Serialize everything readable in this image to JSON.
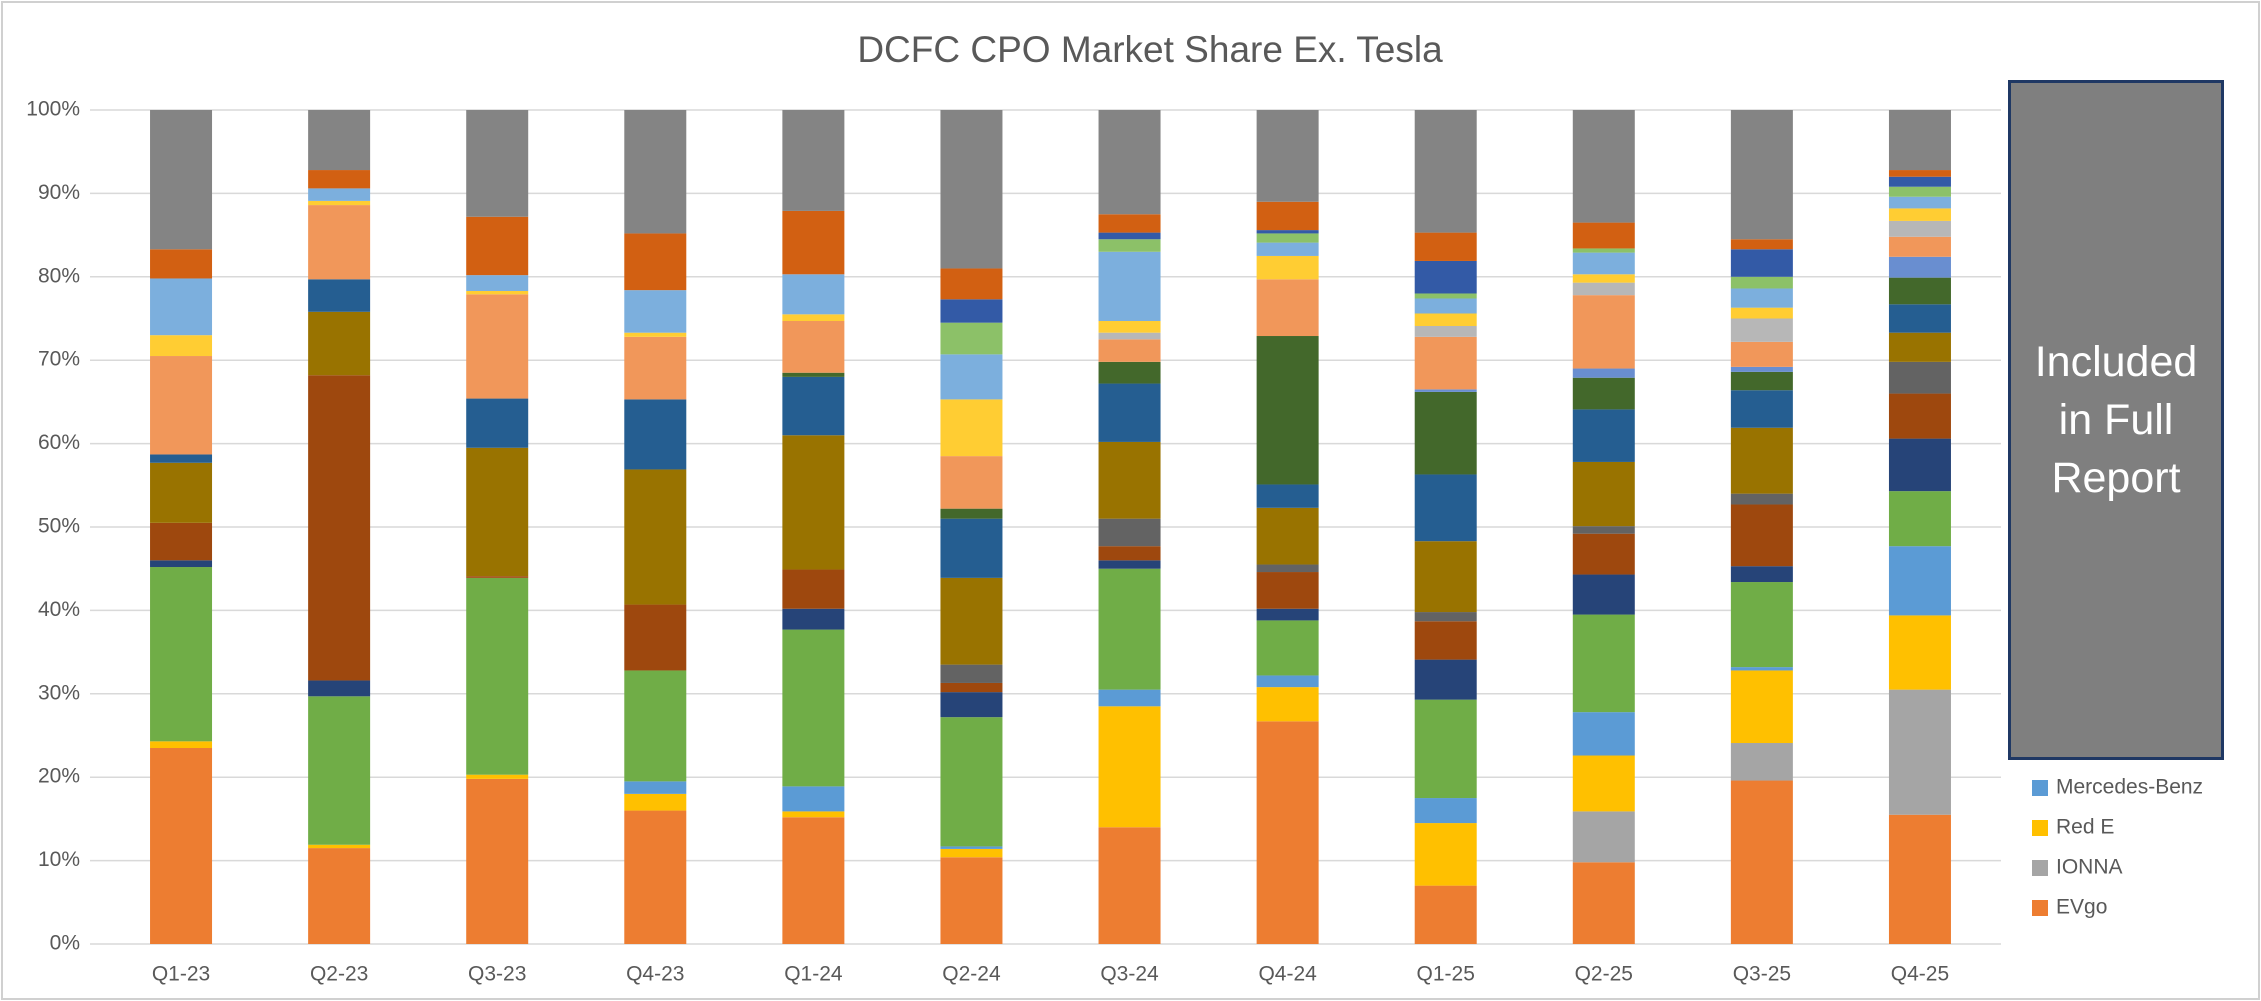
{
  "chart_data": {
    "type": "stacked_bar",
    "title": "DCFC CPO Market Share Ex. Tesla",
    "categories": [
      "Q1-23",
      "Q2-23",
      "Q3-23",
      "Q4-23",
      "Q1-24",
      "Q2-24",
      "Q3-24",
      "Q4-24",
      "Q1-25",
      "Q2-25",
      "Q3-25",
      "Q4-25"
    ],
    "ylim": [
      0,
      100
    ],
    "yticks": [
      {
        "value": 0,
        "label": "0%"
      },
      {
        "value": 10,
        "label": "10%"
      },
      {
        "value": 20,
        "label": "20%"
      },
      {
        "value": 30,
        "label": "30%"
      },
      {
        "value": 40,
        "label": "40%"
      },
      {
        "value": 50,
        "label": "50%"
      },
      {
        "value": 60,
        "label": "60%"
      },
      {
        "value": 70,
        "label": "70%"
      },
      {
        "value": 80,
        "label": "80%"
      },
      {
        "value": 90,
        "label": "90%"
      },
      {
        "value": 100,
        "label": "100%"
      }
    ],
    "grid": true,
    "overlay_text": "Included in Full Report",
    "series": [
      {
        "name": "EVgo",
        "color": "#ED7D31",
        "values": [
          23.5,
          11.5,
          19.8,
          16,
          15.2,
          10.4,
          14,
          26.7,
          7,
          9.8,
          19.6,
          15.5
        ]
      },
      {
        "name": "IONNA",
        "color": "#A5A5A5",
        "values": [
          0,
          0,
          0,
          0,
          0,
          0,
          0,
          0,
          0,
          6.1,
          4.5,
          15
        ]
      },
      {
        "name": "Red E",
        "color": "#FFC000",
        "values": [
          0.8,
          0.4,
          0.5,
          2,
          0.7,
          1,
          14.5,
          4.1,
          7.5,
          6.7,
          8.7,
          8.9
        ]
      },
      {
        "name": "Mercedes-Benz",
        "color": "#5B9BD5",
        "values": [
          0,
          0,
          0,
          1.5,
          3,
          0.3,
          2,
          1.4,
          3,
          5.2,
          0.4,
          8.3
        ]
      },
      {
        "color": "#70AD47",
        "values": [
          20.9,
          17.8,
          23.6,
          13.3,
          18.8,
          15.5,
          14.5,
          6.6,
          11.8,
          11.7,
          10.2,
          6.6
        ]
      },
      {
        "color": "#264478",
        "values": [
          0.8,
          1.9,
          0,
          0,
          2.5,
          3,
          1,
          1.4,
          4.8,
          4.8,
          1.9,
          6.3
        ]
      },
      {
        "color": "#9E480E",
        "values": [
          4.5,
          36.6,
          0.2,
          7.9,
          4.7,
          1.1,
          1.7,
          4.4,
          4.6,
          4.9,
          7.4,
          5.4
        ]
      },
      {
        "color": "#636363",
        "values": [
          0,
          0,
          0,
          0,
          0,
          2.2,
          3.3,
          0.9,
          1.1,
          0.9,
          1.3,
          3.8
        ]
      },
      {
        "color": "#997300",
        "values": [
          7.2,
          7.6,
          15.4,
          16.2,
          16.1,
          10.4,
          9.2,
          6.8,
          8.5,
          7.7,
          7.9,
          3.5
        ]
      },
      {
        "color": "#255E91",
        "values": [
          1,
          3.9,
          5.9,
          8.4,
          7,
          7.1,
          7,
          2.8,
          8,
          6.3,
          4.5,
          3.4
        ]
      },
      {
        "color": "#43682B",
        "values": [
          0,
          0,
          0,
          0,
          0.5,
          1.2,
          2.6,
          17.8,
          9.9,
          3.8,
          2.2,
          3.2
        ]
      },
      {
        "color": "#698ED0",
        "values": [
          0,
          0,
          0,
          0,
          0,
          0,
          0,
          0,
          0.3,
          1.1,
          0.6,
          2.5
        ]
      },
      {
        "color": "#F1975A",
        "values": [
          11.8,
          8.9,
          12.5,
          7.5,
          6.2,
          6.3,
          2.7,
          6.8,
          6.3,
          8.8,
          3,
          2.4
        ]
      },
      {
        "color": "#B7B7B7",
        "values": [
          0,
          0,
          0,
          0,
          0,
          0,
          0.8,
          0,
          1.3,
          1.5,
          2.8,
          1.9
        ]
      },
      {
        "color": "#FFCD33",
        "values": [
          2.5,
          0.5,
          0.4,
          0.5,
          0.8,
          6.8,
          1.4,
          2.8,
          1.5,
          1,
          1.3,
          1.5
        ]
      },
      {
        "color": "#7CAFDD",
        "values": [
          6.8,
          1.5,
          1.9,
          5.1,
          4.8,
          5.4,
          8.3,
          1.6,
          1.8,
          2.6,
          2.3,
          1.4
        ]
      },
      {
        "color": "#8CC168",
        "values": [
          0,
          0,
          0,
          0,
          0,
          3.8,
          1.5,
          1.1,
          0.6,
          0.5,
          1.4,
          1.2
        ]
      },
      {
        "color": "#335AA6",
        "values": [
          0,
          0,
          0,
          0,
          0,
          2.8,
          0.8,
          0.4,
          3.9,
          0,
          3.3,
          1.2
        ]
      },
      {
        "color": "#D26012",
        "values": [
          3.5,
          2.2,
          7,
          6.8,
          7.6,
          3.7,
          2.2,
          3.4,
          3.4,
          3.1,
          1.2,
          0.8
        ]
      },
      {
        "color": "#848484",
        "values": [
          16.7,
          7.2,
          12.8,
          14.8,
          12.1,
          19,
          12.5,
          11,
          14.7,
          13.5,
          15.5,
          7.2
        ]
      }
    ]
  }
}
